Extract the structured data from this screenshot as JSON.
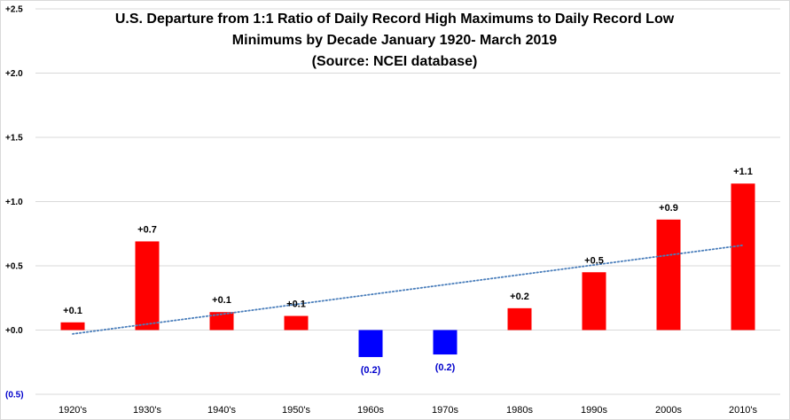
{
  "chart_data": {
    "type": "bar",
    "title_lines": [
      "U.S. Departure from 1:1 Ratio of Daily Record High Maximums to Daily Record Low",
      "Minimums by Decade January 1920- March 2019",
      "(Source: NCEI database)"
    ],
    "xlabel": "",
    "ylabel": "",
    "ylim": [
      -0.5,
      2.5
    ],
    "y_ticks": [
      {
        "value": 2.5,
        "label": "+2.5"
      },
      {
        "value": 2.0,
        "label": "+2.0"
      },
      {
        "value": 1.5,
        "label": "+1.5"
      },
      {
        "value": 1.0,
        "label": "+1.0"
      },
      {
        "value": 0.5,
        "label": "+0.5"
      },
      {
        "value": 0.0,
        "label": "+0.0"
      },
      {
        "value": -0.5,
        "label": "(0.5)"
      }
    ],
    "categories": [
      "1920's",
      "1930's",
      "1940's",
      "1950's",
      "1960s",
      "1970s",
      "1980s",
      "1990s",
      "2000s",
      "2010's"
    ],
    "values": [
      0.06,
      0.69,
      0.14,
      0.11,
      -0.21,
      -0.19,
      0.17,
      0.45,
      0.86,
      1.14
    ],
    "data_labels": [
      "+0.1",
      "+0.7",
      "+0.1",
      "+0.1",
      "(0.2)",
      "(0.2)",
      "+0.2",
      "+0.5",
      "+0.9",
      "+1.1"
    ],
    "trendline": {
      "type": "linear",
      "style": "dotted",
      "start": -0.03,
      "end": 0.66
    },
    "grid": true,
    "legend": "none",
    "colors": {
      "positive": "#ff0000",
      "negative": "#0000ff",
      "negative_label": "#0000cc",
      "positive_label": "#000000",
      "trendline": "#4a7ebb",
      "grid": "#d9d9d9"
    }
  }
}
